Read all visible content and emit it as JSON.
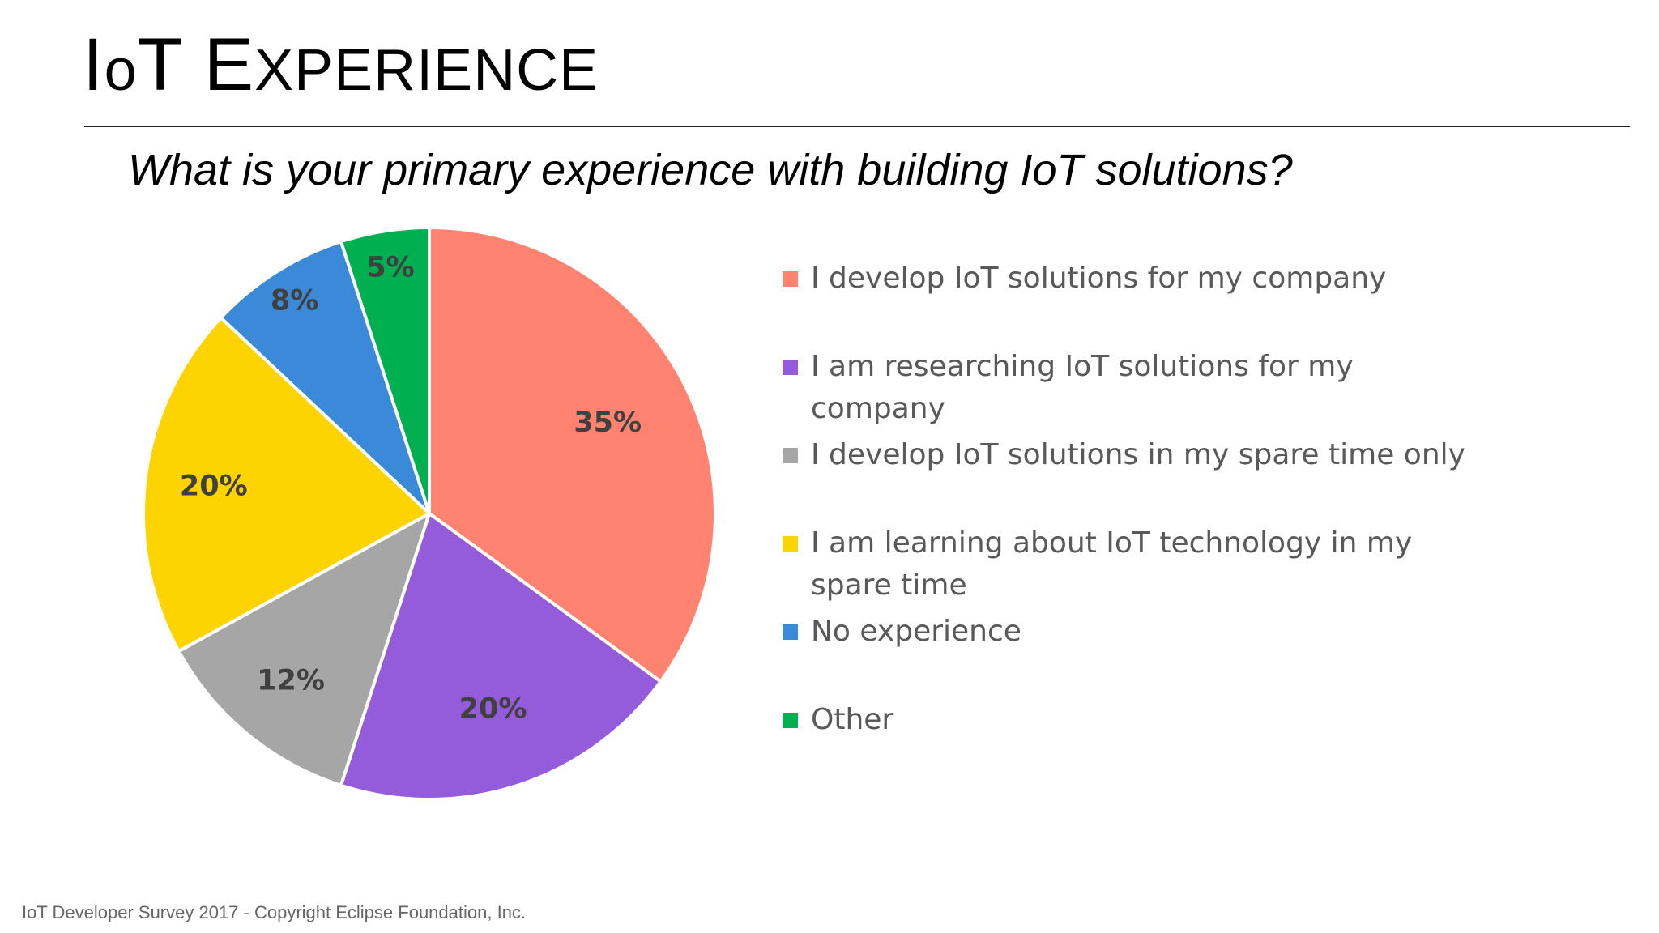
{
  "slide": {
    "title_first": "I",
    "title_o": "o",
    "title_t": "T ",
    "title_e": "E",
    "title_rest": "XPERIENCE",
    "subtitle": "What is your primary experience with building IoT solutions?",
    "footer": "IoT Developer Survey 2017 - Copyright Eclipse Foundation, Inc."
  },
  "chart_data": {
    "type": "pie",
    "title": "",
    "unit": "%",
    "start_angle_deg": 0,
    "direction": "clockwise",
    "legend_position": "right",
    "slices": [
      {
        "label": "I develop IoT solutions for my company",
        "value": 35,
        "display": "35%",
        "color": "#FF8370"
      },
      {
        "label": "I am researching IoT solutions for my company",
        "value": 20,
        "display": "20%",
        "color": "#945BDB"
      },
      {
        "label": "I develop IoT solutions in my spare time only",
        "value": 12,
        "display": "12%",
        "color": "#A6A6A6"
      },
      {
        "label": "I am learning about IoT technology in my spare time",
        "value": 20,
        "display": "20%",
        "color": "#FDD300"
      },
      {
        "label": "No experience",
        "value": 8,
        "display": "8%",
        "color": "#3A8AD9"
      },
      {
        "label": "Other",
        "value": 5,
        "display": "5%",
        "color": "#00B050"
      }
    ]
  }
}
